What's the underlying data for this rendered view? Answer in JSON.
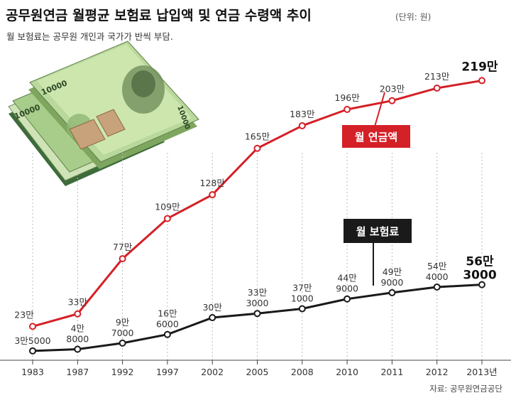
{
  "header": {
    "title": "공무원연금 월평균 보험료 납입액 및 연금 수령액 추이",
    "unit": "(단위: 원)",
    "subtitle": "월 보험료는 공무원 개인과 국가가 반씩 부담."
  },
  "source": "자료: 공무원연금공단",
  "illustration": {
    "bill_denomination": "10000"
  },
  "chart_data": {
    "type": "line",
    "categories": [
      "1983",
      "1987",
      "1992",
      "1997",
      "2002",
      "2005",
      "2008",
      "2010",
      "2011",
      "2012",
      "2013년"
    ],
    "series": [
      {
        "name": "월 연금액",
        "color": "#d42027",
        "values": [
          230000,
          330000,
          770000,
          1090000,
          1280000,
          1650000,
          1830000,
          1960000,
          2030000,
          2130000,
          2190000
        ],
        "labels": [
          "23만",
          "33만",
          "77만",
          "109만",
          "128만",
          "165만",
          "183만",
          "196만",
          "203만",
          "213만",
          "219만"
        ]
      },
      {
        "name": "월 보험료",
        "color": "#1a1a1a",
        "values": [
          35000,
          48000,
          97000,
          166000,
          300000,
          333000,
          371000,
          449000,
          499000,
          544000,
          563000
        ],
        "labels": [
          [
            "3만5000"
          ],
          [
            "4만",
            "8000"
          ],
          [
            "9만",
            "7000"
          ],
          [
            "16만",
            "6000"
          ],
          [
            "30만"
          ],
          [
            "33만",
            "3000"
          ],
          [
            "37만",
            "1000"
          ],
          [
            "44만",
            "9000"
          ],
          [
            "49만",
            "9000"
          ],
          [
            "54만",
            "4000"
          ],
          [
            "56만",
            "3000"
          ]
        ]
      }
    ],
    "xlabel": "",
    "ylabel": "",
    "ylim": [
      0,
      2300000
    ],
    "grid": "vertical",
    "legend": "inline-labels"
  }
}
